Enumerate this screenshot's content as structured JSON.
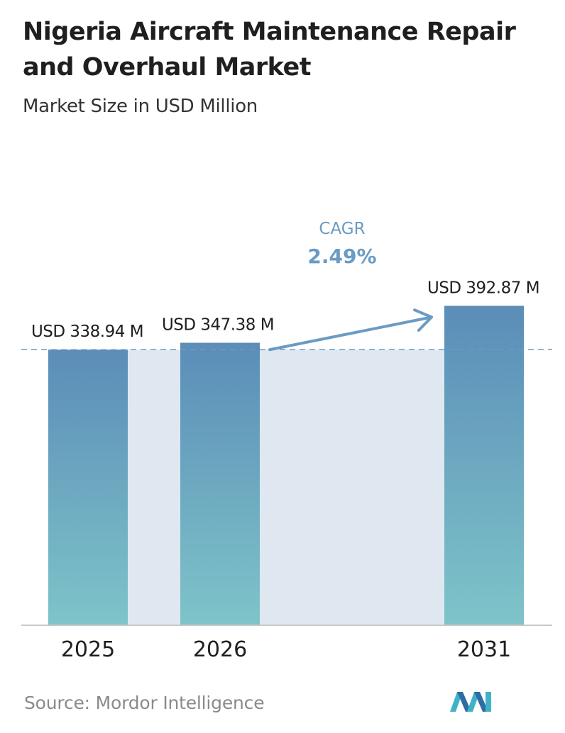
{
  "header": {
    "title": "Nigeria Aircraft Maintenance Repair and Overhaul Market",
    "subtitle": "Market Size in USD Million"
  },
  "chart_data": {
    "type": "bar",
    "categories": [
      "2025",
      "2026",
      "2031"
    ],
    "values": [
      338.94,
      347.38,
      392.87
    ],
    "value_labels": [
      "USD 338.94 M",
      "USD 347.38 M",
      "USD 392.87 M"
    ],
    "title": "Nigeria Aircraft Maintenance Repair and Overhaul Market",
    "subtitle": "Market Size in USD Million",
    "xlabel": "",
    "ylabel": "",
    "ylim": [
      0,
      400
    ],
    "grid": false,
    "annotation": {
      "label": "CAGR",
      "value": "2.49%"
    },
    "colors": {
      "bar_top": "#5b8db8",
      "bar_bottom": "#7ec4c9",
      "band": "#dfe8f1",
      "arrow": "#6a9bc4",
      "cagr_text": "#6a9bc4",
      "baseline": "#c9c9c9",
      "dashed_line": "#6a9bc4"
    }
  },
  "footer": {
    "source": "Source:  Mordor Intelligence",
    "logo": "mordor-intelligence-logo"
  }
}
